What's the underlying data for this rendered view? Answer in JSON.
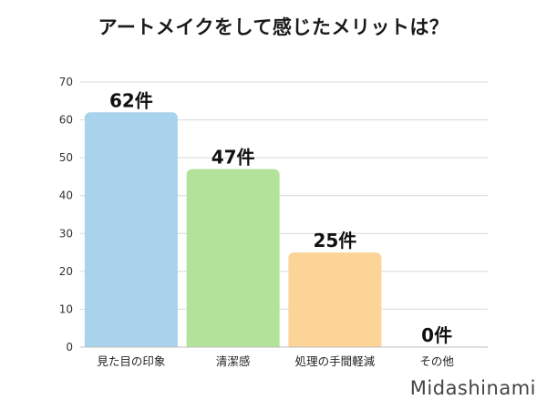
{
  "chart_data": {
    "type": "bar",
    "title": "アートメイクをして感じたメリットは？",
    "categories": [
      "見た目の印象",
      "清潔感",
      "処理の手間軽減",
      "その他"
    ],
    "values": [
      62,
      47,
      25,
      0
    ],
    "data_labels": [
      "62件",
      "47件",
      "25件",
      "0件"
    ],
    "bar_colors": [
      "#a9d2ec",
      "#b3e29b",
      "#fdd498",
      "#e6e6e6"
    ],
    "ylim": [
      0,
      70
    ],
    "yticks": [
      0,
      10,
      20,
      30,
      40,
      50,
      60,
      70
    ],
    "grid": true,
    "xlabel": "",
    "ylabel": ""
  },
  "brand": "Midashinami"
}
